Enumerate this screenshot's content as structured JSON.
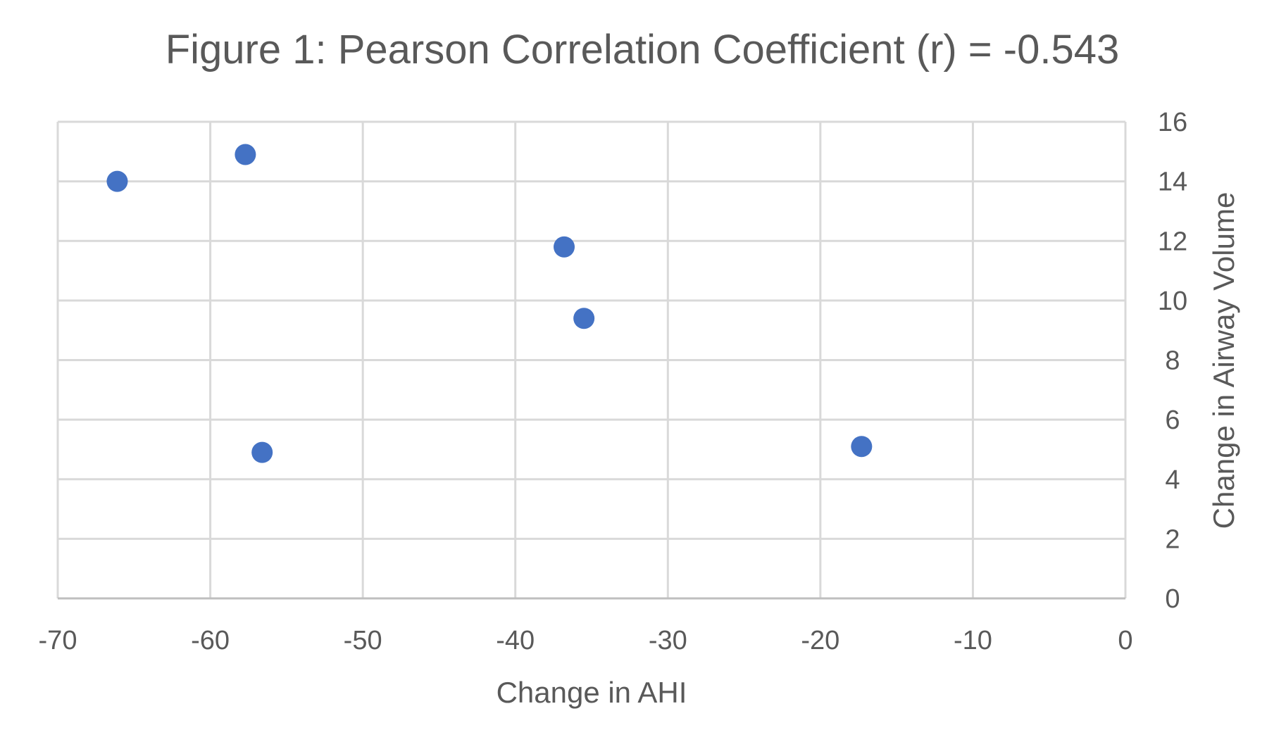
{
  "chart_data": {
    "type": "scatter",
    "title": "Figure 1: Pearson Correlation Coefficient (r) = -0.543",
    "xlabel": "Change in AHI",
    "ylabel": "Change in Airway Volume",
    "xlim": [
      -70,
      0
    ],
    "ylim": [
      0,
      16
    ],
    "x_ticks": [
      -70,
      -60,
      -50,
      -40,
      -30,
      -20,
      -10,
      0
    ],
    "y_ticks": [
      0,
      2,
      4,
      6,
      8,
      10,
      12,
      14,
      16
    ],
    "grid": true,
    "y_axis_side": "right",
    "series": [
      {
        "color": "#4472C4",
        "points": [
          {
            "x": -66.1,
            "y": 14.0
          },
          {
            "x": -57.7,
            "y": 14.9
          },
          {
            "x": -56.6,
            "y": 4.9
          },
          {
            "x": -36.8,
            "y": 11.8
          },
          {
            "x": -35.5,
            "y": 9.4
          },
          {
            "x": -17.3,
            "y": 5.1
          }
        ]
      }
    ]
  }
}
